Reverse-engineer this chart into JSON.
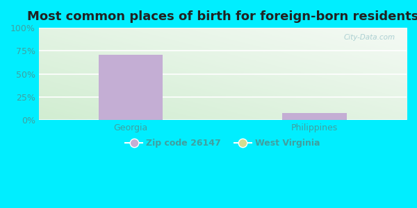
{
  "title": "Most common places of birth for foreign-born residents",
  "categories": [
    "Georgia",
    "Philippines"
  ],
  "zip_values": [
    71,
    8
  ],
  "wv_values": [
    0,
    0
  ],
  "bar_color_zip": "#c4aed4",
  "bar_color_wv": "#d4dc90",
  "background_outer": "#00eeff",
  "yticks": [
    0,
    25,
    50,
    75,
    100
  ],
  "ytick_labels": [
    "0%",
    "25%",
    "50%",
    "75%",
    "100%"
  ],
  "ylim": [
    0,
    100
  ],
  "title_fontsize": 13,
  "tick_fontsize": 9,
  "legend_label_zip": "Zip code 26147",
  "legend_label_wv": "West Virginia",
  "watermark": "City-Data.com",
  "tick_color": "#40a0a0",
  "title_color": "#222222"
}
